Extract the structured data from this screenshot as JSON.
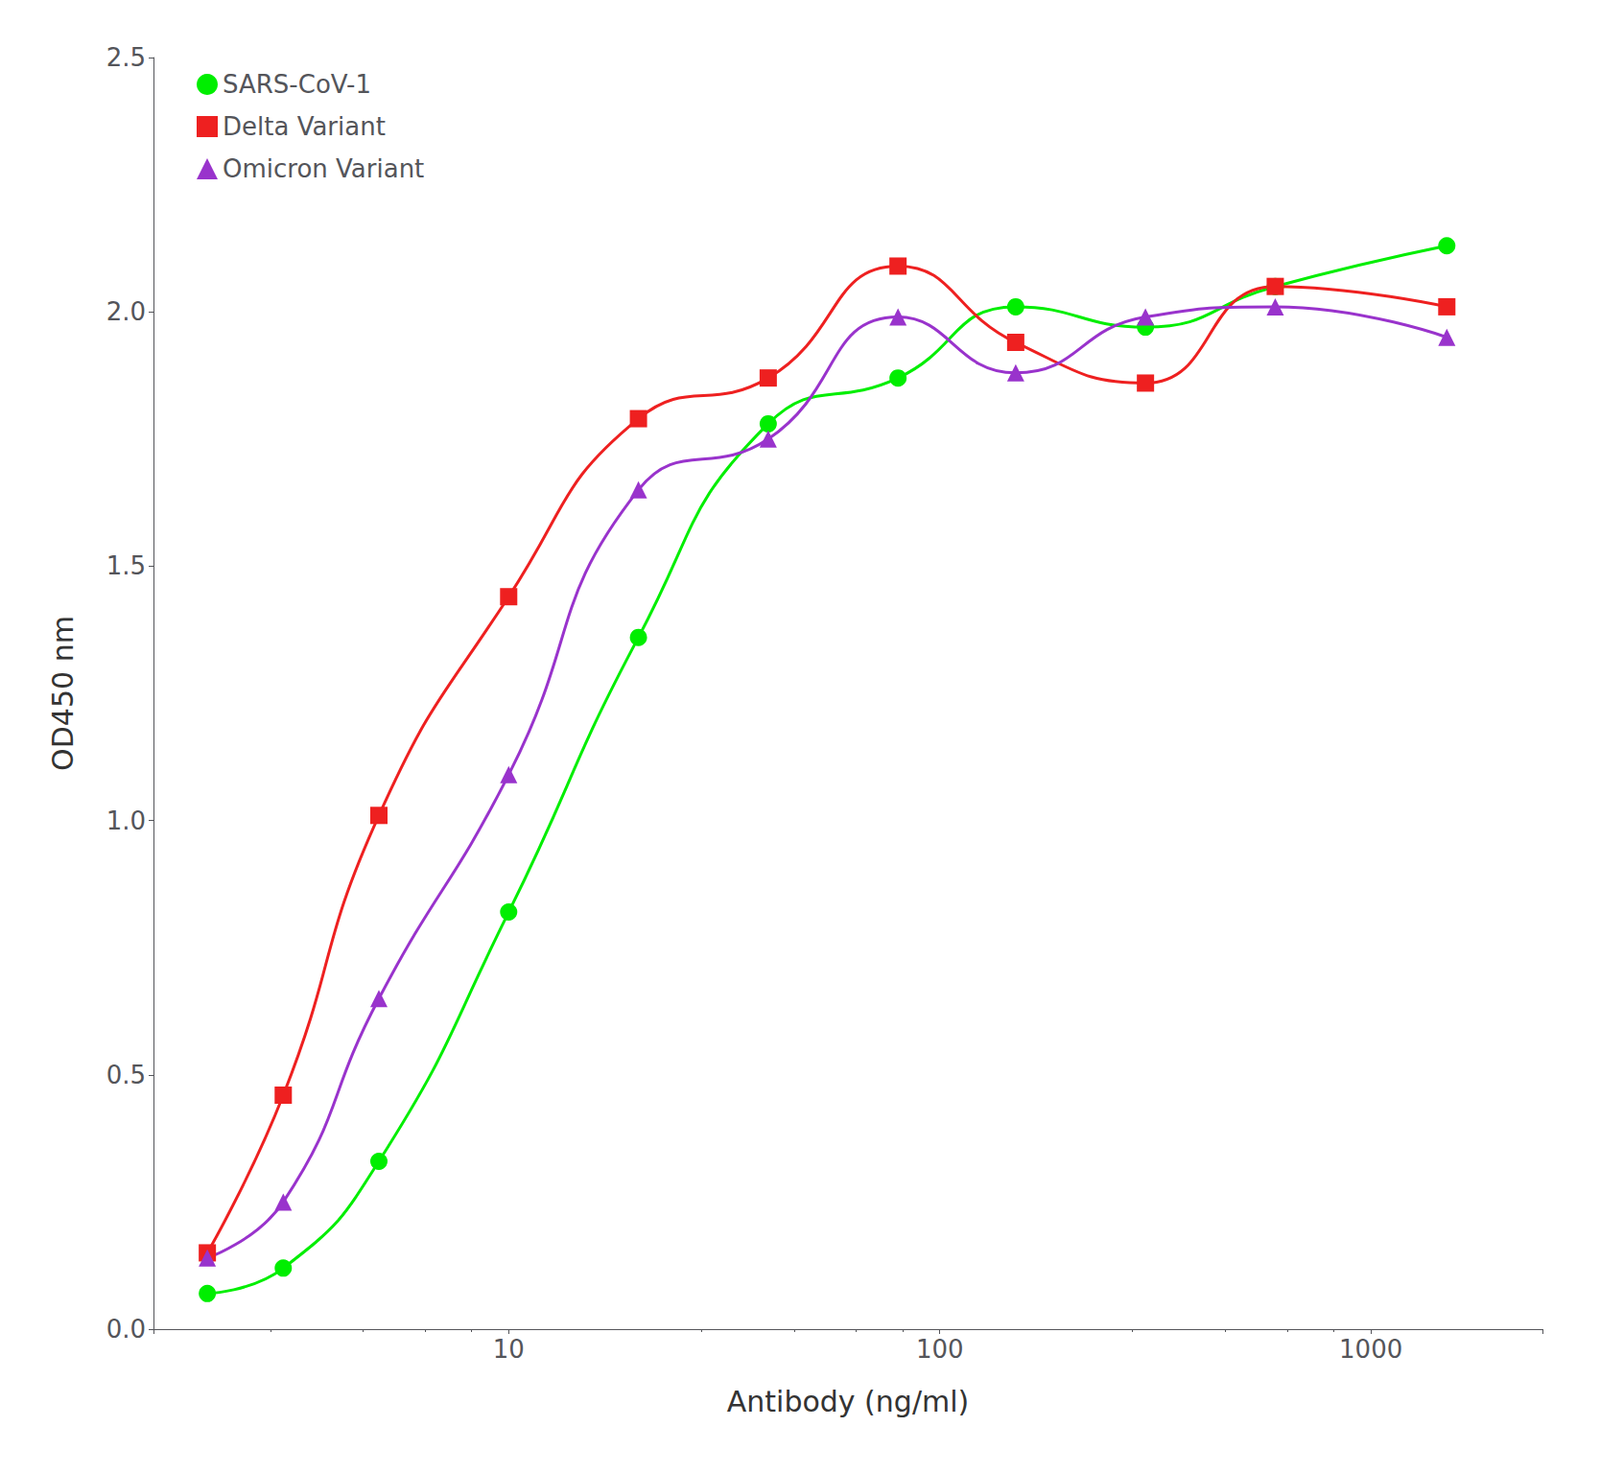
{
  "chart_data": {
    "type": "line",
    "xlabel": "Antibody (ng/ml)",
    "ylabel": "OD450 nm",
    "log": "x",
    "xlim": [
      1.5,
      2500
    ],
    "xticks": [
      10,
      100,
      1000
    ],
    "ylim": [
      0.0,
      2.5
    ],
    "yticks": [
      {
        "value": 0.0,
        "label": "0.0"
      },
      {
        "value": 0.5,
        "label": "0.5"
      },
      {
        "value": 1.0,
        "label": "1.0"
      },
      {
        "value": 1.5,
        "label": "1.5"
      },
      {
        "value": 2.0,
        "label": "2.0"
      },
      {
        "value": 2.5,
        "label": "2.5"
      }
    ],
    "grid": false,
    "legend": "upper left",
    "x": [
      2.0,
      3.0,
      5.0,
      10.0,
      20.0,
      40.0,
      80.0,
      150.0,
      300.0,
      600.0,
      1500.0
    ],
    "series": [
      {
        "name": "SARS-CoV-1",
        "color": "#00EE00",
        "marker": "circle",
        "values": [
          0.07,
          0.12,
          0.33,
          0.82,
          1.36,
          1.78,
          1.87,
          2.01,
          1.97,
          2.05,
          2.13
        ]
      },
      {
        "name": "Delta Variant",
        "color": "#EE2020",
        "marker": "square",
        "values": [
          0.15,
          0.46,
          1.01,
          1.44,
          1.79,
          1.87,
          2.09,
          1.94,
          1.86,
          2.05,
          2.01
        ]
      },
      {
        "name": "Omicron Variant",
        "color": "#9933CC",
        "marker": "triangle",
        "values": [
          0.14,
          0.25,
          0.65,
          1.09,
          1.65,
          1.75,
          1.99,
          1.88,
          1.99,
          2.01,
          1.95
        ]
      }
    ]
  }
}
